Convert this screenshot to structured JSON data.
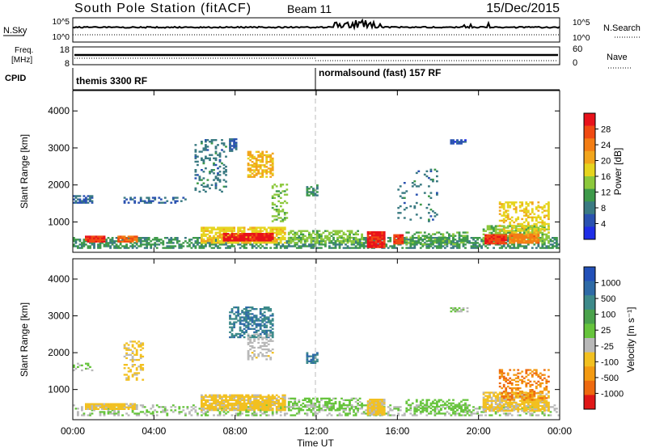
{
  "header": {
    "station": "South Pole Station (fitACF)",
    "beam": "Beam 11",
    "date": "15/Dec/2015"
  },
  "nsky_panel": {
    "left_label": "N.Sky",
    "left_ticks": [
      "10^5",
      "10^0"
    ],
    "right_label": "N.Search",
    "right_ticks": [
      "10^5",
      "10^0"
    ]
  },
  "freq_panel": {
    "left_label_line1": "Freq.",
    "left_label_line2": "[MHz]",
    "left_ticks": [
      "18",
      "8"
    ],
    "right_label": "Nave",
    "right_ticks": [
      "60",
      "0"
    ]
  },
  "cpid": {
    "label": "CPID",
    "segments": [
      {
        "start_hour": 0,
        "text": "themis 3300 RF"
      },
      {
        "start_hour": 12,
        "text": "normalsound (fast) 157 RF"
      }
    ]
  },
  "power_panel": {
    "ylabel": "Slant Range [km]",
    "cbar_label": "Power [dB]",
    "cbar_ticks": [
      "28",
      "24",
      "20",
      "16",
      "12",
      "8",
      "4"
    ],
    "cbar_colors": [
      "#e8121b",
      "#f04a12",
      "#f37d14",
      "#f2a51c",
      "#e6d41e",
      "#8cc83c",
      "#3e9a4a",
      "#3a7a82",
      "#2a52b0",
      "#1f2ee6"
    ]
  },
  "velocity_panel": {
    "ylabel": "Slant Range [km]",
    "cbar_label": "Velocity [m s⁻¹]",
    "cbar_ticks": [
      "1000",
      "500",
      "100",
      "25",
      "-25",
      "-100",
      "-500",
      "-1000"
    ],
    "cbar_colors": [
      "#2250b8",
      "#2e6aa6",
      "#3d8a8a",
      "#4aa24c",
      "#66c43c",
      "#b8b8b8",
      "#f2c020",
      "#f39a12",
      "#ee6a10",
      "#e01818"
    ]
  },
  "axes": {
    "xlabel": "Time UT",
    "xticks": [
      "00:00",
      "04:00",
      "08:00",
      "12:00",
      "16:00",
      "20:00",
      "00:00"
    ],
    "yticks": [
      "4000",
      "3000",
      "2000",
      "1000"
    ]
  },
  "chart_data": [
    {
      "type": "heatmap",
      "panel": "power",
      "xlabel": "Time UT",
      "ylabel": "Slant Range [km]",
      "xlim": [
        0,
        24
      ],
      "ylim": [
        180,
        4550
      ],
      "colorbar": {
        "label": "Power [dB]",
        "range": [
          0,
          32
        ]
      },
      "regions": [
        {
          "t": [
            0.0,
            24.0
          ],
          "r": [
            280,
            560
          ],
          "value": 10,
          "density": 0.55
        },
        {
          "t": [
            0.6,
            1.6
          ],
          "r": [
            450,
            600
          ],
          "value": 28,
          "density": 0.95
        },
        {
          "t": [
            2.2,
            3.2
          ],
          "r": [
            450,
            600
          ],
          "value": 26,
          "density": 0.9
        },
        {
          "t": [
            6.3,
            10.4
          ],
          "r": [
            420,
            860
          ],
          "value": 18,
          "density": 0.75
        },
        {
          "t": [
            7.4,
            9.8
          ],
          "r": [
            480,
            680
          ],
          "value": 30,
          "density": 0.95
        },
        {
          "t": [
            10.6,
            12.0
          ],
          "r": [
            420,
            780
          ],
          "value": 14,
          "density": 0.6
        },
        {
          "t": [
            12.0,
            14.2
          ],
          "r": [
            420,
            760
          ],
          "value": 14,
          "density": 0.55
        },
        {
          "t": [
            14.5,
            15.3
          ],
          "r": [
            300,
            720
          ],
          "value": 30,
          "density": 0.95
        },
        {
          "t": [
            15.8,
            16.3
          ],
          "r": [
            400,
            640
          ],
          "value": 28,
          "density": 0.9
        },
        {
          "t": [
            16.4,
            19.5
          ],
          "r": [
            380,
            700
          ],
          "value": 12,
          "density": 0.45
        },
        {
          "t": [
            20.2,
            23.5
          ],
          "r": [
            420,
            900
          ],
          "value": 14,
          "density": 0.6
        },
        {
          "t": [
            20.3,
            21.4
          ],
          "r": [
            400,
            640
          ],
          "value": 28,
          "density": 0.95
        },
        {
          "t": [
            21.5,
            23.0
          ],
          "r": [
            420,
            660
          ],
          "value": 24,
          "density": 0.9
        },
        {
          "t": [
            21.0,
            23.5
          ],
          "r": [
            700,
            1550
          ],
          "value": 18,
          "density": 0.45
        },
        {
          "t": [
            0.0,
            0.9
          ],
          "r": [
            1500,
            1700
          ],
          "value": 6,
          "density": 0.55
        },
        {
          "t": [
            2.5,
            5.5
          ],
          "r": [
            1500,
            1650
          ],
          "value": 6,
          "density": 0.35
        },
        {
          "t": [
            6.0,
            7.5
          ],
          "r": [
            1800,
            3200
          ],
          "value": 8,
          "density": 0.25
        },
        {
          "t": [
            7.7,
            8.1
          ],
          "r": [
            2900,
            3250
          ],
          "value": 6,
          "density": 0.8
        },
        {
          "t": [
            8.6,
            9.8
          ],
          "r": [
            2200,
            2900
          ],
          "value": 20,
          "density": 0.6
        },
        {
          "t": [
            9.8,
            10.5
          ],
          "r": [
            1000,
            2000
          ],
          "value": 14,
          "density": 0.35
        },
        {
          "t": [
            11.5,
            12.0
          ],
          "r": [
            1700,
            2000
          ],
          "value": 10,
          "density": 0.6
        },
        {
          "t": [
            18.6,
            19.5
          ],
          "r": [
            3100,
            3200
          ],
          "value": 5,
          "density": 0.7
        },
        {
          "t": [
            16.0,
            18.0
          ],
          "r": [
            1000,
            2400
          ],
          "value": 8,
          "density": 0.1
        }
      ]
    },
    {
      "type": "heatmap",
      "panel": "velocity",
      "xlabel": "Time UT",
      "ylabel": "Slant Range [km]",
      "xlim": [
        0,
        24
      ],
      "ylim": [
        180,
        4550
      ],
      "colorbar": {
        "label": "Velocity [m s⁻¹]",
        "range": [
          -1200,
          1200
        ]
      },
      "regions": [
        {
          "t": [
            0.0,
            24.0
          ],
          "r": [
            280,
            560
          ],
          "value": 0,
          "density": 0.35
        },
        {
          "t": [
            0.6,
            3.2
          ],
          "r": [
            450,
            620
          ],
          "value": -300,
          "density": 0.85
        },
        {
          "t": [
            6.3,
            10.4
          ],
          "r": [
            420,
            860
          ],
          "value": -300,
          "density": 0.85
        },
        {
          "t": [
            10.6,
            14.2
          ],
          "r": [
            420,
            760
          ],
          "value": 60,
          "density": 0.45
        },
        {
          "t": [
            14.5,
            15.3
          ],
          "r": [
            300,
            720
          ],
          "value": -300,
          "density": 0.95
        },
        {
          "t": [
            16.4,
            19.5
          ],
          "r": [
            380,
            700
          ],
          "value": 120,
          "density": 0.4
        },
        {
          "t": [
            20.2,
            23.5
          ],
          "r": [
            400,
            900
          ],
          "value": -300,
          "density": 0.75
        },
        {
          "t": [
            21.0,
            23.5
          ],
          "r": [
            700,
            1550
          ],
          "value": -700,
          "density": 0.4
        },
        {
          "t": [
            0.0,
            0.9
          ],
          "r": [
            1500,
            1700
          ],
          "value": 0,
          "density": 0.45
        },
        {
          "t": [
            2.5,
            3.5
          ],
          "r": [
            1200,
            2300
          ],
          "value": -300,
          "density": 0.35
        },
        {
          "t": [
            7.7,
            9.8
          ],
          "r": [
            2400,
            3250
          ],
          "value": 700,
          "density": 0.55
        },
        {
          "t": [
            8.6,
            9.8
          ],
          "r": [
            1800,
            2500
          ],
          "value": -150,
          "density": 0.35
        },
        {
          "t": [
            11.5,
            12.0
          ],
          "r": [
            1700,
            2000
          ],
          "value": 700,
          "density": 0.6
        },
        {
          "t": [
            18.6,
            19.5
          ],
          "r": [
            3100,
            3200
          ],
          "value": 0,
          "density": 0.7
        }
      ]
    }
  ]
}
